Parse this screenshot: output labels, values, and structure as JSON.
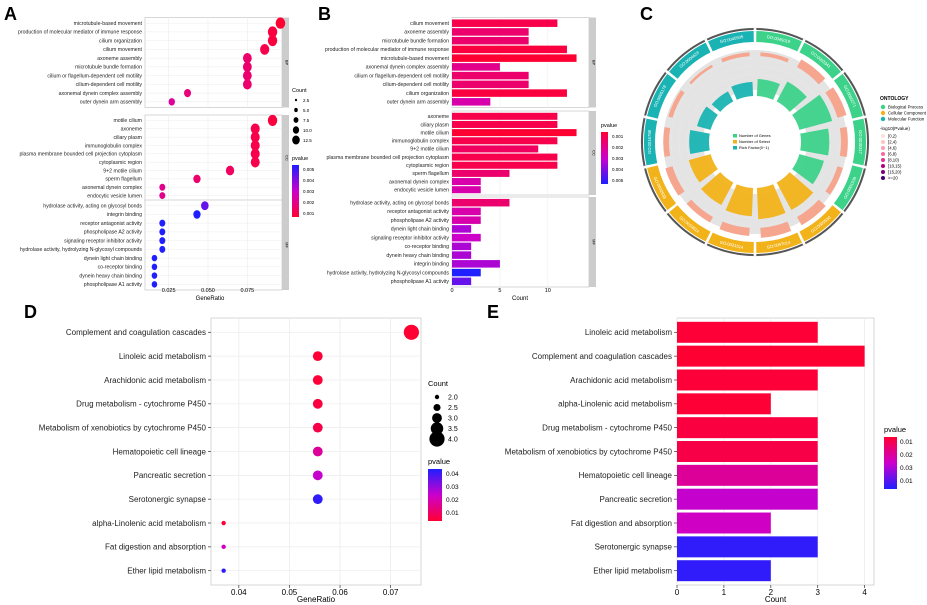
{
  "panels": {
    "a": "A",
    "b": "B",
    "c": "C",
    "d": "D",
    "e": "E"
  },
  "colors": {
    "low": "#ff0033",
    "mid": "#cc00cc",
    "high": "#1f1fff",
    "panel_bg": "#ffffff",
    "grid": "#ececec",
    "frame": "#bdbdbd",
    "strip": "#cccccc"
  },
  "chart_data": [
    {
      "id": "A",
      "type": "scatter",
      "xlabel": "GeneRatio",
      "xlim": [
        0.01,
        0.097
      ],
      "xticks": [
        0.025,
        0.05,
        0.075
      ],
      "xtick_labels": [
        "0.025",
        "0.050",
        "0.075"
      ],
      "facets": [
        {
          "name": "BP",
          "terms": [
            "microtubule-based movement",
            "production of molecular mediator of immune response",
            "cilium organization",
            "cilium movement",
            "axoneme assembly",
            "microtubule bundle formation",
            "cilium or flagellum-dependent cell motility",
            "cilium-dependent cell motility",
            "axonemal dynein complex assembly",
            "outer dynein arm assembly"
          ],
          "gene_ratio": [
            0.096,
            0.091,
            0.091,
            0.086,
            0.075,
            0.075,
            0.075,
            0.075,
            0.037,
            0.027
          ],
          "count": [
            18,
            17,
            17,
            16,
            14,
            14,
            14,
            14,
            7,
            5
          ],
          "pvalue": [
            0.0001,
            0.0003,
            0.0003,
            0.0005,
            0.001,
            0.001,
            0.001,
            0.001,
            0.0012,
            0.0018
          ]
        },
        {
          "name": "CC",
          "terms": [
            "motile cilium",
            "axoneme",
            "ciliary plasm",
            "immunoglobulin complex",
            "plasma membrane bounded cell projection cytoplasm",
            "cytoplasmic region",
            "9+2 motile cilium",
            "sperm flagellum",
            "axonemal dynein complex",
            "endocytic vesicle lumen"
          ],
          "gene_ratio": [
            0.091,
            0.08,
            0.08,
            0.08,
            0.08,
            0.08,
            0.064,
            0.043,
            0.021,
            0.021
          ],
          "count": [
            17,
            15,
            15,
            15,
            15,
            15,
            12,
            8,
            4,
            4
          ],
          "pvalue": [
            0.0003,
            0.0005,
            0.0005,
            0.0005,
            0.0005,
            0.0005,
            0.0008,
            0.001,
            0.0015,
            0.0015
          ]
        },
        {
          "name": "MF",
          "terms": [
            "hydrolase activity, acting on glycosyl bonds",
            "integrin binding",
            "receptor antagonist activity",
            "phospholipase A2 activity",
            "signaling receptor inhibitor activity",
            "hydrolase activity, hydrolyzing N-glycosyl compounds",
            "dynein light chain binding",
            "co-receptor binding",
            "dynein heavy chain binding",
            "phospholipase A1 activity"
          ],
          "gene_ratio": [
            0.048,
            0.043,
            0.021,
            0.021,
            0.021,
            0.021,
            0.016,
            0.016,
            0.016,
            0.016
          ],
          "count": [
            9,
            8,
            4,
            4,
            4,
            4,
            3,
            3,
            3,
            3
          ],
          "pvalue": [
            0.004,
            0.02,
            0.025,
            0.028,
            0.03,
            0.055,
            0.03,
            0.035,
            0.035,
            0.04
          ]
        }
      ],
      "size_legend": {
        "title": "Count",
        "labels": [
          "2.5",
          "5.0",
          "7.5",
          "10.0",
          "12.5"
        ]
      },
      "color_legend": {
        "title": "pvalue",
        "labels": [
          "0.005",
          "0.004",
          "0.003",
          "0.002",
          "0.001"
        ]
      }
    },
    {
      "id": "B",
      "type": "bar",
      "xlabel": "Count",
      "xlim": [
        0,
        14.3
      ],
      "xticks": [
        0,
        5,
        10
      ],
      "xtick_labels": [
        "0",
        "5",
        "10"
      ],
      "facets": [
        {
          "name": "BP",
          "terms": [
            "cilium movement",
            "axoneme assembly",
            "microtubule bundle formation",
            "production of molecular mediator of immune response",
            "microtubule-based movement",
            "axonemal dynein complex assembly",
            "cilium or flagellum-dependent cell motility",
            "cilium-dependent cell motility",
            "cilium organization",
            "outer dynein arm assembly"
          ],
          "values": [
            11,
            8,
            8,
            12,
            13,
            5,
            8,
            8,
            12,
            4
          ],
          "pvalue": [
            0.0005,
            0.001,
            0.001,
            0.0003,
            0.0001,
            0.0015,
            0.001,
            0.001,
            0.0003,
            0.002
          ]
        },
        {
          "name": "CC",
          "terms": [
            "axoneme",
            "ciliary plasm",
            "motile cilium",
            "immunoglobulin complex",
            "9+2 motile cilium",
            "plasma membrane bounded cell projection cytoplasm",
            "cytoplasmic region",
            "sperm flagellum",
            "axonemal dynein complex",
            "endocytic vesicle lumen"
          ],
          "values": [
            11,
            11,
            13,
            11,
            9,
            11,
            11,
            6,
            3,
            3
          ],
          "pvalue": [
            0.0005,
            0.0005,
            0.0001,
            0.0005,
            0.0008,
            0.0005,
            0.0005,
            0.001,
            0.002,
            0.002
          ]
        },
        {
          "name": "MF",
          "terms": [
            "hydrolase activity, acting on glycosyl bonds",
            "receptor antagonist activity",
            "phospholipase A2 activity",
            "dynein light chain binding",
            "signaling receptor inhibitor activity",
            "co-receptor binding",
            "dynein heavy chain binding",
            "integrin binding",
            "hydrolase activity, hydrolyzing N-glycosyl compounds",
            "phospholipase A1 activity"
          ],
          "values": [
            6,
            3,
            3,
            2,
            3,
            2,
            2,
            5,
            3,
            2
          ],
          "pvalue": [
            0.001,
            0.002,
            0.002,
            0.003,
            0.0025,
            0.003,
            0.003,
            0.003,
            0.005,
            0.004
          ]
        }
      ],
      "color_legend": {
        "title": "pvalue",
        "labels": [
          "0.001",
          "0.002",
          "0.003",
          "0.004",
          "0.005"
        ]
      }
    },
    {
      "id": "C",
      "type": "circular-enrichment",
      "sectors": [
        {
          "label": "GO:0045019",
          "category": "Biological Process",
          "count": 6,
          "sig": 6
        },
        {
          "label": "GO:0003341",
          "category": "Biological Process",
          "count": 14,
          "sig": 8
        },
        {
          "label": "GO:0060271",
          "category": "Biological Process",
          "count": 15,
          "sig": 12
        },
        {
          "label": "GO:0030317",
          "category": "Biological Process",
          "count": 11,
          "sig": 10
        },
        {
          "label": "GO:0001539",
          "category": "Biological Process",
          "count": 9,
          "sig": 9
        },
        {
          "label": "GO:0005930",
          "category": "Cellular Component",
          "count": 15,
          "sig": 11
        },
        {
          "label": "GO:0097014",
          "category": "Cellular Component",
          "count": 16,
          "sig": 11
        },
        {
          "label": "GO:0031514",
          "category": "Cellular Component",
          "count": 13,
          "sig": 10
        },
        {
          "label": "GO:0019814",
          "category": "Cellular Component",
          "count": 10,
          "sig": 9
        },
        {
          "label": "GO:0032838",
          "category": "Cellular Component",
          "count": 12,
          "sig": 8
        },
        {
          "label": "GO:0016798",
          "category": "Molecular Function",
          "count": 9,
          "sig": 7
        },
        {
          "label": "GO:0005178",
          "category": "Molecular Function",
          "count": 7,
          "sig": 5
        },
        {
          "label": "GO:0004623",
          "category": "Molecular Function",
          "count": 4,
          "sig": 4
        },
        {
          "label": "GO:0045505",
          "category": "Molecular Function",
          "count": 6,
          "sig": 5
        }
      ],
      "inner_legend": [
        "Number of Genes",
        "Number of Select",
        "Rich Factor(0~1)"
      ],
      "legend": {
        "title": "ONTOLOGY",
        "items": [
          {
            "label": "Biological Process",
            "color": "#3cd28a"
          },
          {
            "label": "Cellular Component",
            "color": "#f2b31a"
          },
          {
            "label": "Molecular Function",
            "color": "#1ab3b3"
          }
        ],
        "p_title": "-log10(Pvalue)",
        "p_items": [
          {
            "label": "[0,2)",
            "color": "#fde0dd"
          },
          {
            "label": "[2,4)",
            "color": "#fcc5c0"
          },
          {
            "label": "[4,6)",
            "color": "#fa9fb5"
          },
          {
            "label": "[6,8)",
            "color": "#f768a1"
          },
          {
            "label": "[8,10)",
            "color": "#dd3497"
          },
          {
            "label": "[10,15)",
            "color": "#ae017e"
          },
          {
            "label": "[15,20)",
            "color": "#7a0177"
          },
          {
            "label": ">=20",
            "color": "#49006a"
          }
        ]
      }
    },
    {
      "id": "D",
      "type": "scatter",
      "xlabel": "GeneRatio",
      "xlim": [
        0.0345,
        0.076
      ],
      "xticks": [
        0.04,
        0.05,
        0.06,
        0.07
      ],
      "xtick_labels": [
        "0.04",
        "0.05",
        "0.06",
        "0.07"
      ],
      "terms": [
        "Complement and coagulation cascades",
        "Linoleic acid metabolism",
        "Arachidonic acid metabolism",
        "Drug metabolism - cytochrome P450",
        "Metabolism of xenobiotics by cytochrome P450",
        "Hematopoietic cell lineage",
        "Pancreatic secretion",
        "Serotonergic synapse",
        "alpha-Linolenic acid metabolism",
        "Fat digestion and absorption",
        "Ether lipid metabolism"
      ],
      "gene_ratio": [
        0.0741,
        0.0556,
        0.0556,
        0.0556,
        0.0556,
        0.0556,
        0.0556,
        0.0556,
        0.037,
        0.037,
        0.037
      ],
      "count": [
        4,
        3,
        3,
        3,
        3,
        3,
        3,
        3,
        2,
        2,
        2
      ],
      "pvalue": [
        0.0002,
        0.0008,
        0.001,
        0.002,
        0.003,
        0.014,
        0.022,
        0.04,
        0.0005,
        0.02,
        0.04
      ],
      "size_legend": {
        "title": "Count",
        "labels": [
          "2.0",
          "2.5",
          "3.0",
          "3.5",
          "4.0"
        ]
      },
      "color_legend": {
        "title": "pvalue",
        "labels": [
          "0.04",
          "0.03",
          "0.02",
          "0.01"
        ]
      }
    },
    {
      "id": "E",
      "type": "bar",
      "xlabel": "Count",
      "xlim": [
        0,
        4.2
      ],
      "xticks": [
        0,
        1,
        2,
        3,
        4
      ],
      "xtick_labels": [
        "0",
        "1",
        "2",
        "3",
        "4"
      ],
      "terms": [
        "Linoleic acid metabolism",
        "Complement and coagulation cascades",
        "Arachidonic acid metabolism",
        "alpha-Linolenic acid metabolism",
        "Drug metabolism - cytochrome P450",
        "Metabolism of xenobiotics by cytochrome P450",
        "Hematopoietic cell lineage",
        "Pancreatic secretion",
        "Fat digestion and absorption",
        "Serotonergic synapse",
        "Ether lipid metabolism"
      ],
      "values": [
        3,
        4,
        3,
        2,
        3,
        3,
        3,
        3,
        2,
        3,
        2
      ],
      "pvalue": [
        0.0008,
        0.0002,
        0.001,
        0.0005,
        0.002,
        0.003,
        0.014,
        0.022,
        0.02,
        0.04,
        0.04
      ],
      "color_legend": {
        "title": "pvalue",
        "labels": [
          "0.01",
          "0.02",
          "0.03",
          "0.01"
        ]
      }
    }
  ]
}
